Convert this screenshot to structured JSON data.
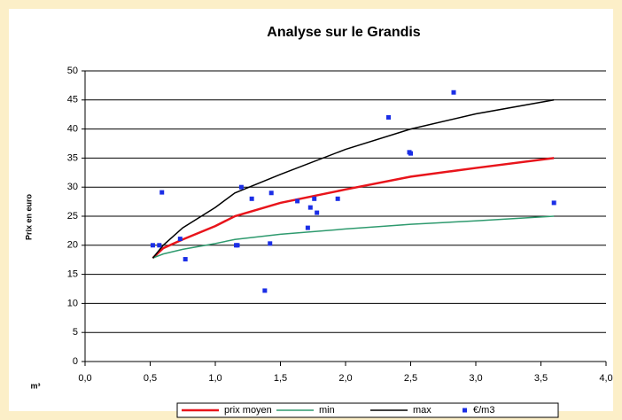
{
  "chart_data": {
    "type": "line",
    "title": "Analyse sur le Grandis",
    "y_label": "Prix en euro",
    "x_label": "m³",
    "xlim": [
      0,
      4
    ],
    "xticks": [
      {
        "value": 0,
        "label": "0,0"
      },
      {
        "value": 0.5,
        "label": "0,5"
      },
      {
        "value": 1,
        "label": "1,0"
      },
      {
        "value": 1.5,
        "label": "1,5"
      },
      {
        "value": 2,
        "label": "2,0"
      },
      {
        "value": 2.5,
        "label": "2,5"
      },
      {
        "value": 3,
        "label": "3,0"
      },
      {
        "value": 3.5,
        "label": "3,5"
      },
      {
        "value": 4,
        "label": "4,0"
      }
    ],
    "ylim": [
      0,
      50
    ],
    "yticks": [
      0,
      5,
      10,
      15,
      20,
      25,
      30,
      35,
      40,
      45,
      50
    ],
    "grid": true,
    "legend": "bottom",
    "series": [
      {
        "name": "prix moyen",
        "color": "#e8141b",
        "mode": "line",
        "x": [
          0.52,
          0.6,
          0.75,
          1.0,
          1.15,
          1.5,
          2.0,
          2.5,
          3.0,
          3.6
        ],
        "values": [
          17.8,
          19.5,
          21,
          23.3,
          25,
          27.3,
          29.6,
          31.8,
          33.3,
          35
        ]
      },
      {
        "name": "min",
        "color": "#2e9a6e",
        "mode": "line",
        "x": [
          0.52,
          0.6,
          0.75,
          1.0,
          1.15,
          1.5,
          2.0,
          2.5,
          3.0,
          3.6
        ],
        "values": [
          17.8,
          18.5,
          19.3,
          20.3,
          21,
          21.9,
          22.8,
          23.6,
          24.2,
          25
        ]
      },
      {
        "name": "max",
        "color": "#000000",
        "mode": "line",
        "x": [
          0.52,
          0.6,
          0.75,
          1.0,
          1.15,
          1.5,
          2.0,
          2.5,
          3.0,
          3.6
        ],
        "values": [
          17.8,
          20,
          23,
          26.5,
          29,
          32.2,
          36.5,
          40,
          42.6,
          45
        ]
      },
      {
        "name": "€/m3",
        "color": "#1b2ee6",
        "mode": "markers",
        "x": [
          0.52,
          0.57,
          0.59,
          0.73,
          0.77,
          1.16,
          1.17,
          1.2,
          1.28,
          1.38,
          1.42,
          1.43,
          1.63,
          1.71,
          1.73,
          1.76,
          1.78,
          1.94,
          2.33,
          2.49,
          2.5,
          2.83,
          3.6
        ],
        "values": [
          20,
          20,
          29.1,
          21.1,
          17.6,
          20,
          20,
          30,
          28,
          12.2,
          20.3,
          29,
          27.6,
          23,
          26.5,
          28,
          25.6,
          28,
          42,
          36,
          35.8,
          46.3,
          27.3
        ]
      }
    ]
  }
}
